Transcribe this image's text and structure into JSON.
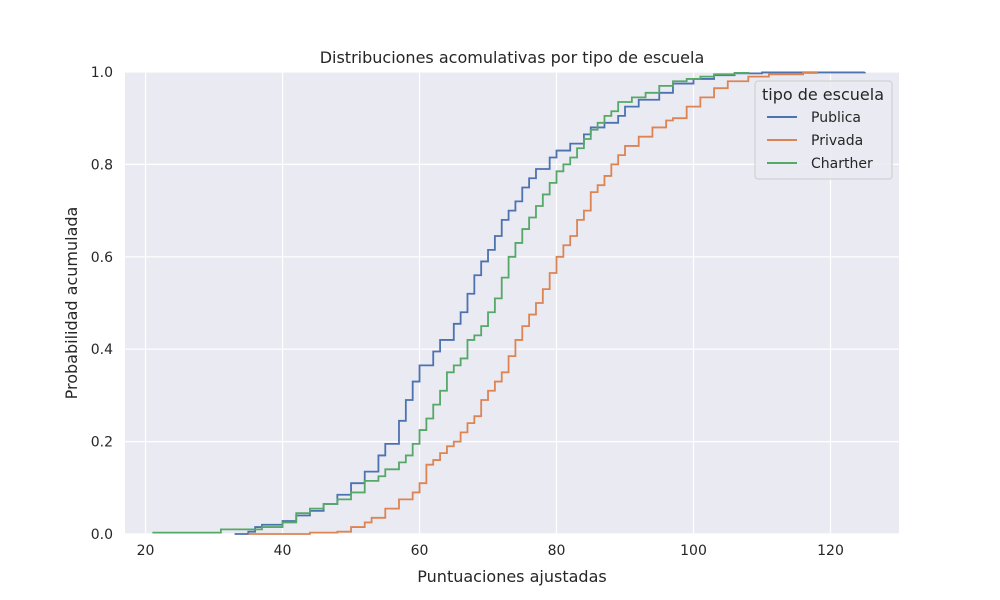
{
  "chart_data": {
    "type": "line",
    "step": true,
    "title": "Distribuciones acomulativas por tipo de escuela",
    "xlabel": "Puntuaciones ajustadas",
    "ylabel": "Probabilidad acumulada",
    "xlim": [
      17,
      130
    ],
    "ylim": [
      0,
      1
    ],
    "xticks": [
      20,
      40,
      60,
      80,
      100,
      120
    ],
    "yticks": [
      0.0,
      0.2,
      0.4,
      0.6,
      0.8,
      1.0
    ],
    "xtick_labels": [
      "20",
      "40",
      "60",
      "80",
      "100",
      "120"
    ],
    "ytick_labels": [
      "0.0",
      "0.2",
      "0.4",
      "0.6",
      "0.8",
      "1.0"
    ],
    "grid": true,
    "legend": {
      "title": "tipo de escuela",
      "position": "top-right"
    },
    "series": [
      {
        "name": "Publica",
        "color": "#4c72b0",
        "points": [
          [
            33,
            0.0
          ],
          [
            35,
            0.005
          ],
          [
            36,
            0.015
          ],
          [
            37,
            0.02
          ],
          [
            40,
            0.028
          ],
          [
            42,
            0.04
          ],
          [
            44,
            0.05
          ],
          [
            46,
            0.065
          ],
          [
            48,
            0.085
          ],
          [
            50,
            0.11
          ],
          [
            52,
            0.135
          ],
          [
            54,
            0.17
          ],
          [
            55,
            0.195
          ],
          [
            57,
            0.245
          ],
          [
            58,
            0.29
          ],
          [
            59,
            0.33
          ],
          [
            60,
            0.365
          ],
          [
            62,
            0.395
          ],
          [
            63,
            0.42
          ],
          [
            65,
            0.455
          ],
          [
            66,
            0.48
          ],
          [
            67,
            0.52
          ],
          [
            68,
            0.56
          ],
          [
            69,
            0.59
          ],
          [
            70,
            0.615
          ],
          [
            71,
            0.645
          ],
          [
            72,
            0.68
          ],
          [
            73,
            0.7
          ],
          [
            74,
            0.72
          ],
          [
            75,
            0.75
          ],
          [
            76,
            0.77
          ],
          [
            77,
            0.79
          ],
          [
            79,
            0.815
          ],
          [
            80,
            0.83
          ],
          [
            82,
            0.845
          ],
          [
            84,
            0.865
          ],
          [
            85,
            0.88
          ],
          [
            87,
            0.89
          ],
          [
            89,
            0.905
          ],
          [
            90,
            0.925
          ],
          [
            92,
            0.94
          ],
          [
            95,
            0.955
          ],
          [
            97,
            0.975
          ],
          [
            100,
            0.985
          ],
          [
            103,
            0.993
          ],
          [
            106,
            0.997
          ],
          [
            110,
            0.999
          ],
          [
            125,
            1.0
          ]
        ]
      },
      {
        "name": "Privada",
        "color": "#dd8452",
        "points": [
          [
            35,
            0.0
          ],
          [
            44,
            0.003
          ],
          [
            48,
            0.005
          ],
          [
            50,
            0.015
          ],
          [
            52,
            0.025
          ],
          [
            53,
            0.035
          ],
          [
            55,
            0.055
          ],
          [
            57,
            0.075
          ],
          [
            59,
            0.09
          ],
          [
            60,
            0.11
          ],
          [
            61,
            0.15
          ],
          [
            62,
            0.16
          ],
          [
            63,
            0.175
          ],
          [
            64,
            0.19
          ],
          [
            65,
            0.2
          ],
          [
            66,
            0.22
          ],
          [
            67,
            0.24
          ],
          [
            68,
            0.255
          ],
          [
            69,
            0.29
          ],
          [
            70,
            0.31
          ],
          [
            71,
            0.33
          ],
          [
            72,
            0.35
          ],
          [
            73,
            0.385
          ],
          [
            74,
            0.42
          ],
          [
            75,
            0.45
          ],
          [
            76,
            0.475
          ],
          [
            77,
            0.5
          ],
          [
            78,
            0.53
          ],
          [
            79,
            0.565
          ],
          [
            80,
            0.6
          ],
          [
            81,
            0.625
          ],
          [
            82,
            0.645
          ],
          [
            83,
            0.68
          ],
          [
            84,
            0.7
          ],
          [
            85,
            0.74
          ],
          [
            86,
            0.755
          ],
          [
            87,
            0.775
          ],
          [
            88,
            0.8
          ],
          [
            89,
            0.82
          ],
          [
            90,
            0.84
          ],
          [
            92,
            0.86
          ],
          [
            94,
            0.88
          ],
          [
            96,
            0.895
          ],
          [
            97,
            0.9
          ],
          [
            99,
            0.925
          ],
          [
            101,
            0.945
          ],
          [
            103,
            0.965
          ],
          [
            105,
            0.98
          ],
          [
            108,
            0.99
          ],
          [
            111,
            0.995
          ],
          [
            116,
            0.998
          ],
          [
            118,
            1.0
          ]
        ]
      },
      {
        "name": "Charther",
        "color": "#55a868",
        "points": [
          [
            21,
            0.003
          ],
          [
            31,
            0.01
          ],
          [
            37,
            0.015
          ],
          [
            40,
            0.025
          ],
          [
            42,
            0.045
          ],
          [
            44,
            0.055
          ],
          [
            46,
            0.065
          ],
          [
            48,
            0.075
          ],
          [
            50,
            0.09
          ],
          [
            52,
            0.115
          ],
          [
            54,
            0.125
          ],
          [
            55,
            0.14
          ],
          [
            57,
            0.155
          ],
          [
            58,
            0.17
          ],
          [
            59,
            0.195
          ],
          [
            60,
            0.225
          ],
          [
            61,
            0.25
          ],
          [
            62,
            0.28
          ],
          [
            63,
            0.31
          ],
          [
            64,
            0.35
          ],
          [
            65,
            0.365
          ],
          [
            66,
            0.38
          ],
          [
            67,
            0.42
          ],
          [
            68,
            0.43
          ],
          [
            69,
            0.45
          ],
          [
            70,
            0.48
          ],
          [
            71,
            0.51
          ],
          [
            72,
            0.555
          ],
          [
            73,
            0.6
          ],
          [
            74,
            0.63
          ],
          [
            75,
            0.66
          ],
          [
            76,
            0.685
          ],
          [
            77,
            0.71
          ],
          [
            78,
            0.735
          ],
          [
            79,
            0.76
          ],
          [
            80,
            0.785
          ],
          [
            81,
            0.8
          ],
          [
            82,
            0.815
          ],
          [
            83,
            0.835
          ],
          [
            84,
            0.855
          ],
          [
            85,
            0.875
          ],
          [
            86,
            0.89
          ],
          [
            87,
            0.905
          ],
          [
            88,
            0.915
          ],
          [
            89,
            0.935
          ],
          [
            91,
            0.945
          ],
          [
            93,
            0.955
          ],
          [
            95,
            0.97
          ],
          [
            97,
            0.98
          ],
          [
            99,
            0.985
          ],
          [
            101,
            0.99
          ],
          [
            103,
            0.995
          ],
          [
            106,
            0.998
          ],
          [
            108,
            1.0
          ]
        ]
      }
    ]
  }
}
